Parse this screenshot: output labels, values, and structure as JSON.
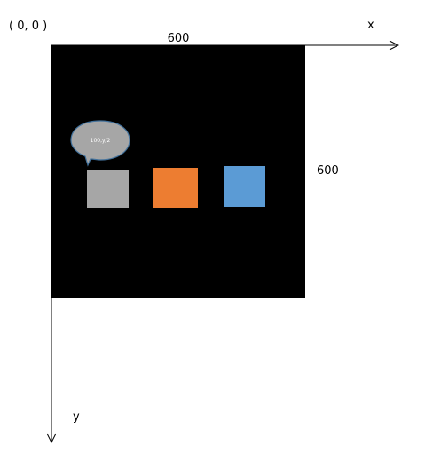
{
  "origin_label": "( 0, 0 )",
  "x_axis_label": "x",
  "y_axis_label": "y",
  "canvas": {
    "width_label": "600",
    "height_label": "600",
    "color": "#000000"
  },
  "callout": {
    "text": "100,y/2",
    "fill": "#a6a6a6",
    "stroke": "#41719c"
  },
  "squares": [
    {
      "name": "gray-square",
      "color": "#a6a6a6"
    },
    {
      "name": "orange-square",
      "color": "#ed7d31"
    },
    {
      "name": "blue-square",
      "color": "#5b9bd5"
    }
  ]
}
